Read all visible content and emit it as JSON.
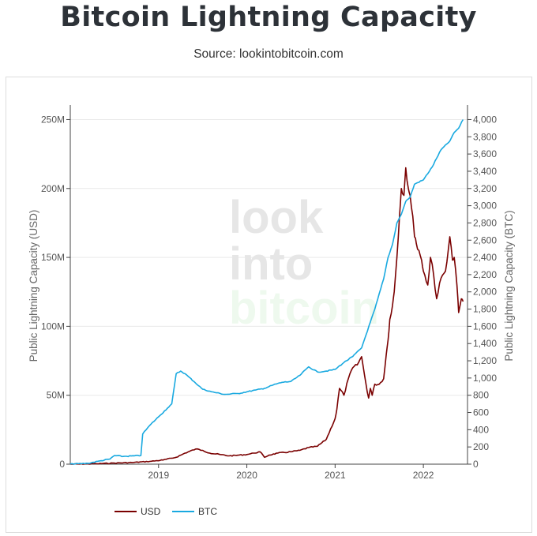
{
  "title": "Bitcoin Lightning Capacity",
  "subtitle": "Source: lookintobitcoin.com",
  "watermark": [
    "look",
    "into",
    "bitcoin"
  ],
  "colors": {
    "usd": "#7a0000",
    "btc": "#19a9e0",
    "title": "#2d3238",
    "watermark_gray": "#e6e6e6",
    "watermark_green": "#eef9ee"
  },
  "chart_data": {
    "type": "line",
    "title": "Bitcoin Lightning Capacity",
    "subtitle": "Source: lookintobitcoin.com",
    "xlabel": "",
    "ylabel": "Public Lightning Capacity (USD)",
    "y2label": "Public Lightning Capacity (BTC)",
    "xlim": [
      2018.0,
      2022.5
    ],
    "ylim": [
      0,
      260000000
    ],
    "y2lim": [
      0,
      4160
    ],
    "x_ticks": [
      2019,
      2020,
      2021,
      2022
    ],
    "x_tick_labels": [
      "2019",
      "2020",
      "2021",
      "2022"
    ],
    "y_ticks": [
      0,
      50000000,
      100000000,
      150000000,
      200000000,
      250000000
    ],
    "y_tick_labels": [
      "0",
      "50M",
      "100M",
      "150M",
      "200M",
      "250M"
    ],
    "y2_ticks": [
      0,
      200,
      400,
      600,
      800,
      1000,
      1200,
      1400,
      1600,
      1800,
      2000,
      2200,
      2400,
      2600,
      2800,
      3000,
      3200,
      3400,
      3600,
      3800,
      4000
    ],
    "y2_tick_labels": [
      "0",
      "200",
      "400",
      "600",
      "800",
      "1,000",
      "1,200",
      "1,400",
      "1,600",
      "1,800",
      "2,000",
      "2,200",
      "2,400",
      "2,600",
      "2,800",
      "3,000",
      "3,200",
      "3,400",
      "3,600",
      "3,800",
      "4,000"
    ],
    "grid": true,
    "legend": "bottom-left",
    "series": [
      {
        "name": "USD",
        "axis": "left",
        "color": "#7a0000",
        "x": [
          2018.0,
          2018.3,
          2018.5,
          2018.7,
          2018.9,
          2019.05,
          2019.2,
          2019.3,
          2019.42,
          2019.5,
          2019.58,
          2019.7,
          2019.8,
          2019.9,
          2020.0,
          2020.08,
          2020.15,
          2020.2,
          2020.25,
          2020.35,
          2020.5,
          2020.6,
          2020.7,
          2020.8,
          2020.9,
          2021.0,
          2021.02,
          2021.05,
          2021.1,
          2021.15,
          2021.2,
          2021.25,
          2021.3,
          2021.35,
          2021.38,
          2021.4,
          2021.42,
          2021.45,
          2021.5,
          2021.55,
          2021.58,
          2021.6,
          2021.62,
          2021.65,
          2021.67,
          2021.7,
          2021.73,
          2021.75,
          2021.78,
          2021.8,
          2021.83,
          2021.85,
          2021.88,
          2021.9,
          2021.92,
          2021.95,
          2021.98,
          2022.0,
          2022.05,
          2022.08,
          2022.1,
          2022.15,
          2022.2,
          2022.25,
          2022.3,
          2022.33,
          2022.35,
          2022.38,
          2022.4,
          2022.43,
          2022.45
        ],
        "y": [
          0,
          300000,
          800000,
          1200000,
          2000000,
          3000000,
          5000000,
          8000000,
          11000000,
          10000000,
          8000000,
          7000000,
          6000000,
          6500000,
          7000000,
          8000000,
          9000000,
          5000000,
          6500000,
          8000000,
          9000000,
          10000000,
          12000000,
          13000000,
          18000000,
          33000000,
          40000000,
          55000000,
          50000000,
          62000000,
          70000000,
          72000000,
          78000000,
          58000000,
          48000000,
          55000000,
          50000000,
          58000000,
          58000000,
          62000000,
          80000000,
          90000000,
          105000000,
          115000000,
          125000000,
          150000000,
          180000000,
          200000000,
          195000000,
          215000000,
          200000000,
          195000000,
          180000000,
          165000000,
          160000000,
          155000000,
          148000000,
          140000000,
          130000000,
          150000000,
          145000000,
          120000000,
          135000000,
          140000000,
          165000000,
          148000000,
          150000000,
          130000000,
          110000000,
          120000000,
          118000000
        ]
      },
      {
        "name": "BTC",
        "axis": "right",
        "color": "#19a9e0",
        "x": [
          2018.0,
          2018.2,
          2018.35,
          2018.45,
          2018.5,
          2018.6,
          2018.8,
          2018.82,
          2018.9,
          2019.0,
          2019.1,
          2019.15,
          2019.2,
          2019.25,
          2019.3,
          2019.4,
          2019.5,
          2019.6,
          2019.75,
          2019.9,
          2020.0,
          2020.1,
          2020.2,
          2020.3,
          2020.4,
          2020.5,
          2020.6,
          2020.7,
          2020.8,
          2020.9,
          2021.0,
          2021.1,
          2021.2,
          2021.3,
          2021.35,
          2021.45,
          2021.55,
          2021.6,
          2021.65,
          2021.7,
          2021.75,
          2021.8,
          2021.85,
          2021.9,
          2022.0,
          2022.1,
          2022.2,
          2022.3,
          2022.35,
          2022.4,
          2022.45
        ],
        "y": [
          0,
          10,
          40,
          60,
          100,
          90,
          100,
          350,
          450,
          550,
          650,
          700,
          1050,
          1080,
          1050,
          960,
          870,
          840,
          810,
          820,
          840,
          860,
          880,
          920,
          950,
          960,
          1030,
          1130,
          1070,
          1080,
          1100,
          1180,
          1250,
          1350,
          1500,
          1800,
          2150,
          2400,
          2550,
          2800,
          2900,
          3050,
          3100,
          3250,
          3300,
          3450,
          3650,
          3750,
          3850,
          3900,
          4000
        ]
      }
    ]
  }
}
